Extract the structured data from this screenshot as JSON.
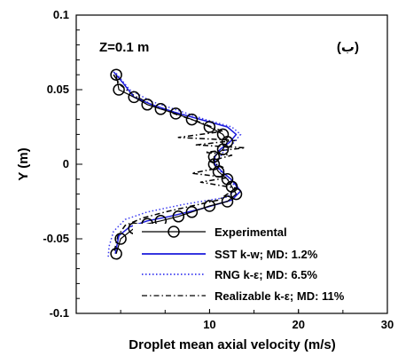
{
  "chart_data": {
    "type": "line",
    "xlabel": "Droplet mean axial velocity (m/s)",
    "ylabel": "Y (m)",
    "xlim": [
      -5,
      30
    ],
    "ylim": [
      -0.1,
      0.1
    ],
    "x_ticks": [
      "10",
      "20",
      "30"
    ],
    "y_ticks": [
      "0.1",
      "0.05",
      "0",
      "-0.05",
      "-0.1"
    ],
    "annotation": "Z=0.1 m",
    "panel_label": "(ب)",
    "legend_position": "bottom-right",
    "series": [
      {
        "name": "Experimental",
        "style": "solid-circles",
        "color": "#000000",
        "points": [
          {
            "x": -0.5,
            "y": 0.06
          },
          {
            "x": -0.2,
            "y": 0.05
          },
          {
            "x": 1.5,
            "y": 0.045
          },
          {
            "x": 3.0,
            "y": 0.04
          },
          {
            "x": 4.5,
            "y": 0.037
          },
          {
            "x": 6.2,
            "y": 0.034
          },
          {
            "x": 8.0,
            "y": 0.03
          },
          {
            "x": 10.0,
            "y": 0.025
          },
          {
            "x": 11.5,
            "y": 0.02
          },
          {
            "x": 12.0,
            "y": 0.015
          },
          {
            "x": 11.5,
            "y": 0.01
          },
          {
            "x": 10.5,
            "y": 0.005
          },
          {
            "x": 10.5,
            "y": 0.0
          },
          {
            "x": 11.0,
            "y": -0.005
          },
          {
            "x": 12.0,
            "y": -0.01
          },
          {
            "x": 12.5,
            "y": -0.015
          },
          {
            "x": 13.0,
            "y": -0.02
          },
          {
            "x": 12.0,
            "y": -0.025
          },
          {
            "x": 10.0,
            "y": -0.028
          },
          {
            "x": 8.0,
            "y": -0.032
          },
          {
            "x": 6.5,
            "y": -0.035
          },
          {
            "x": 4.5,
            "y": -0.038
          },
          {
            "x": 3.0,
            "y": -0.04
          },
          {
            "x": 1.5,
            "y": -0.043
          },
          {
            "x": 0.0,
            "y": -0.05
          },
          {
            "x": -0.5,
            "y": -0.06
          }
        ]
      },
      {
        "name": "SST k-w; MD: 1.2%",
        "style": "solid",
        "color": "#1a1adb",
        "points": [
          {
            "x": -0.8,
            "y": 0.062
          },
          {
            "x": 0.2,
            "y": 0.055
          },
          {
            "x": 1.5,
            "y": 0.045
          },
          {
            "x": 3.5,
            "y": 0.04
          },
          {
            "x": 6.0,
            "y": 0.035
          },
          {
            "x": 9.0,
            "y": 0.03
          },
          {
            "x": 12.0,
            "y": 0.025
          },
          {
            "x": 13.0,
            "y": 0.02
          },
          {
            "x": 12.3,
            "y": 0.015
          },
          {
            "x": 11.2,
            "y": 0.01
          },
          {
            "x": 10.6,
            "y": 0.005
          },
          {
            "x": 10.6,
            "y": 0.0
          },
          {
            "x": 11.4,
            "y": -0.005
          },
          {
            "x": 12.4,
            "y": -0.01
          },
          {
            "x": 13.5,
            "y": -0.018
          },
          {
            "x": 12.5,
            "y": -0.024
          },
          {
            "x": 9.0,
            "y": -0.03
          },
          {
            "x": 5.5,
            "y": -0.035
          },
          {
            "x": 3.0,
            "y": -0.038
          },
          {
            "x": 1.0,
            "y": -0.042
          },
          {
            "x": -0.2,
            "y": -0.048
          },
          {
            "x": -0.6,
            "y": -0.06
          }
        ]
      },
      {
        "name": "RNG k-ε; MD: 6.5%",
        "style": "dotted",
        "color": "#3a3af0",
        "points": [
          {
            "x": -0.5,
            "y": 0.061
          },
          {
            "x": 1.0,
            "y": 0.05
          },
          {
            "x": 3.5,
            "y": 0.042
          },
          {
            "x": 6.5,
            "y": 0.036
          },
          {
            "x": 9.5,
            "y": 0.03
          },
          {
            "x": 12.5,
            "y": 0.025
          },
          {
            "x": 13.5,
            "y": 0.02
          },
          {
            "x": 12.5,
            "y": 0.013
          },
          {
            "x": 11.5,
            "y": 0.008
          },
          {
            "x": 11.0,
            "y": 0.003
          },
          {
            "x": 11.0,
            "y": -0.003
          },
          {
            "x": 12.0,
            "y": -0.01
          },
          {
            "x": 13.2,
            "y": -0.016
          },
          {
            "x": 12.0,
            "y": -0.022
          },
          {
            "x": 7.0,
            "y": -0.027
          },
          {
            "x": 3.0,
            "y": -0.032
          },
          {
            "x": 0.5,
            "y": -0.037
          },
          {
            "x": -0.8,
            "y": -0.045
          },
          {
            "x": -1.3,
            "y": -0.055
          },
          {
            "x": -1.4,
            "y": -0.062
          }
        ]
      },
      {
        "name": "Realizable k-ε; MD: 11%",
        "style": "dash-dot",
        "color": "#000000",
        "points": [
          {
            "x": -0.8,
            "y": 0.06
          },
          {
            "x": 0.0,
            "y": 0.053
          },
          {
            "x": 1.5,
            "y": 0.046
          },
          {
            "x": 3.5,
            "y": 0.04
          },
          {
            "x": 6.0,
            "y": 0.034
          },
          {
            "x": 9.0,
            "y": 0.028
          },
          {
            "x": 11.5,
            "y": 0.022
          },
          {
            "x": 6.5,
            "y": 0.018
          },
          {
            "x": 13.0,
            "y": 0.016
          },
          {
            "x": 8.5,
            "y": 0.013
          },
          {
            "x": 14.0,
            "y": 0.011
          },
          {
            "x": 9.5,
            "y": 0.008
          },
          {
            "x": 12.5,
            "y": 0.006
          },
          {
            "x": 10.0,
            "y": 0.002
          },
          {
            "x": 11.5,
            "y": -0.002
          },
          {
            "x": 8.0,
            "y": -0.006
          },
          {
            "x": 12.0,
            "y": -0.009
          },
          {
            "x": 9.0,
            "y": -0.012
          },
          {
            "x": 13.0,
            "y": -0.016
          },
          {
            "x": 12.0,
            "y": -0.02
          },
          {
            "x": 11.0,
            "y": -0.024
          },
          {
            "x": 8.0,
            "y": -0.028
          },
          {
            "x": 5.0,
            "y": -0.032
          },
          {
            "x": 2.5,
            "y": -0.036
          },
          {
            "x": 0.5,
            "y": -0.041
          },
          {
            "x": -0.3,
            "y": -0.048
          },
          {
            "x": -0.7,
            "y": -0.058
          }
        ]
      }
    ]
  }
}
